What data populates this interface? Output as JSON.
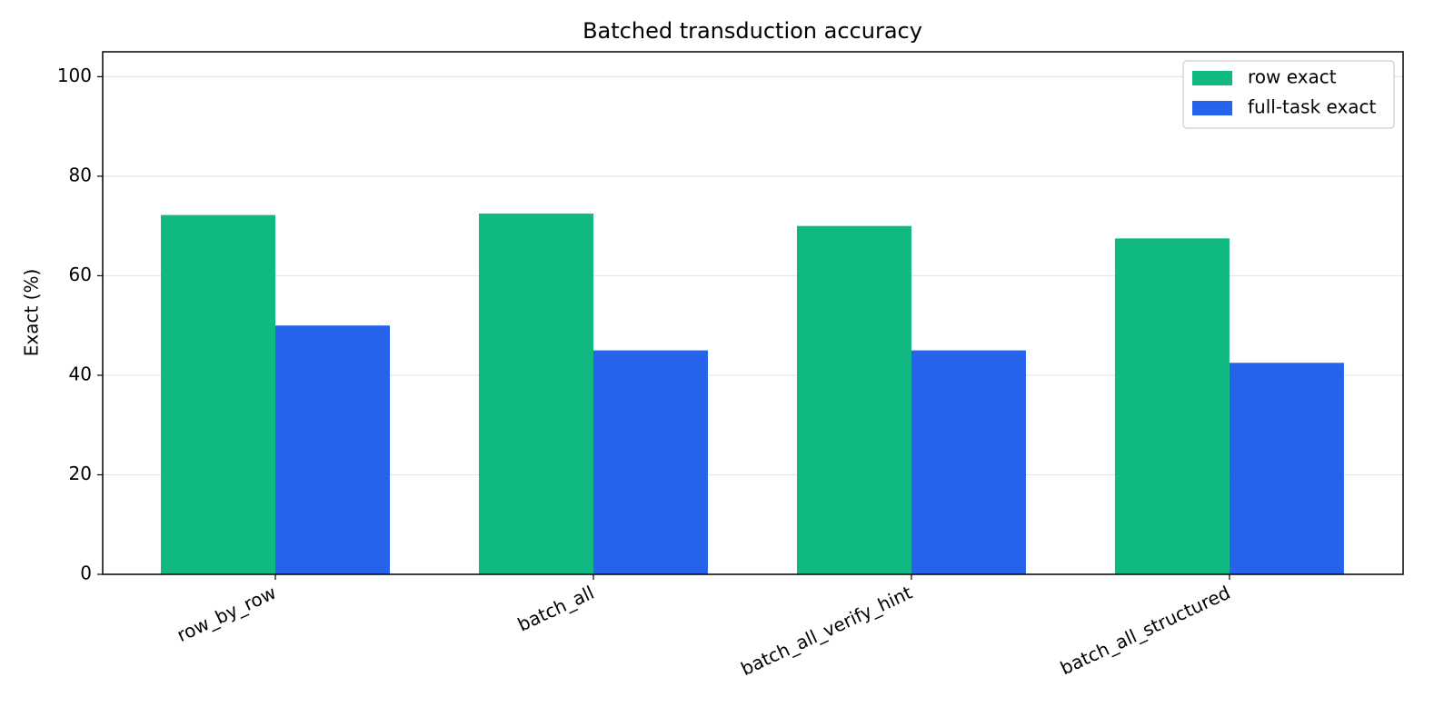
{
  "chart_data": {
    "type": "bar",
    "title": "Batched transduction accuracy",
    "y_label": "Exact (%)",
    "categories": [
      "row_by_row",
      "batch_all",
      "batch_all_verify_hint",
      "batch_all_structured"
    ],
    "series": [
      {
        "name": "row exact",
        "color": "#10b981",
        "values": [
          72.2,
          72.5,
          70.0,
          67.5
        ]
      },
      {
        "name": "full-task exact",
        "color": "#2563eb",
        "values": [
          50.0,
          45.0,
          45.0,
          42.5
        ]
      }
    ],
    "ylim": [
      0,
      105
    ],
    "yticks": [
      0,
      20,
      40,
      60,
      80,
      100
    ],
    "grid": true,
    "legend": "upper right"
  }
}
